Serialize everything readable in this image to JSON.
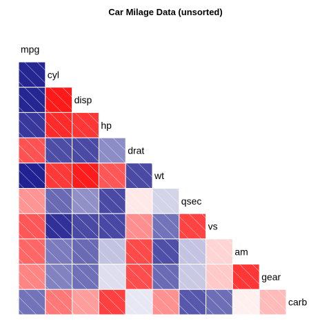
{
  "chart_data": {
    "type": "heatmap",
    "title": "Car Milage Data (unsorted)",
    "variables": [
      "mpg",
      "cyl",
      "disp",
      "hp",
      "drat",
      "wt",
      "qsec",
      "vs",
      "am",
      "gear",
      "carb"
    ],
    "value_range": [
      -1,
      1
    ],
    "colors": {
      "negative": "#000080",
      "zero": "#ffffff",
      "positive": "#ff0000",
      "shading_lines": "#ffffff"
    },
    "lower_triangle": [
      [],
      [
        -0.85
      ],
      [
        -0.85,
        0.9
      ],
      [
        -0.78,
        0.83,
        0.79
      ],
      [
        0.68,
        -0.7,
        -0.71,
        -0.45
      ],
      [
        -0.87,
        0.78,
        0.89,
        0.66,
        -0.71
      ],
      [
        0.42,
        -0.59,
        -0.43,
        -0.71,
        0.09,
        -0.17
      ],
      [
        0.66,
        -0.81,
        -0.71,
        -0.72,
        0.44,
        -0.55,
        0.74
      ],
      [
        0.6,
        -0.52,
        -0.59,
        -0.24,
        0.71,
        -0.69,
        -0.23,
        0.17
      ],
      [
        0.48,
        -0.49,
        -0.56,
        -0.13,
        0.7,
        -0.58,
        -0.21,
        0.21,
        0.79
      ],
      [
        -0.55,
        0.53,
        0.39,
        0.75,
        -0.09,
        0.43,
        -0.66,
        -0.57,
        0.06,
        0.27
      ]
    ]
  }
}
